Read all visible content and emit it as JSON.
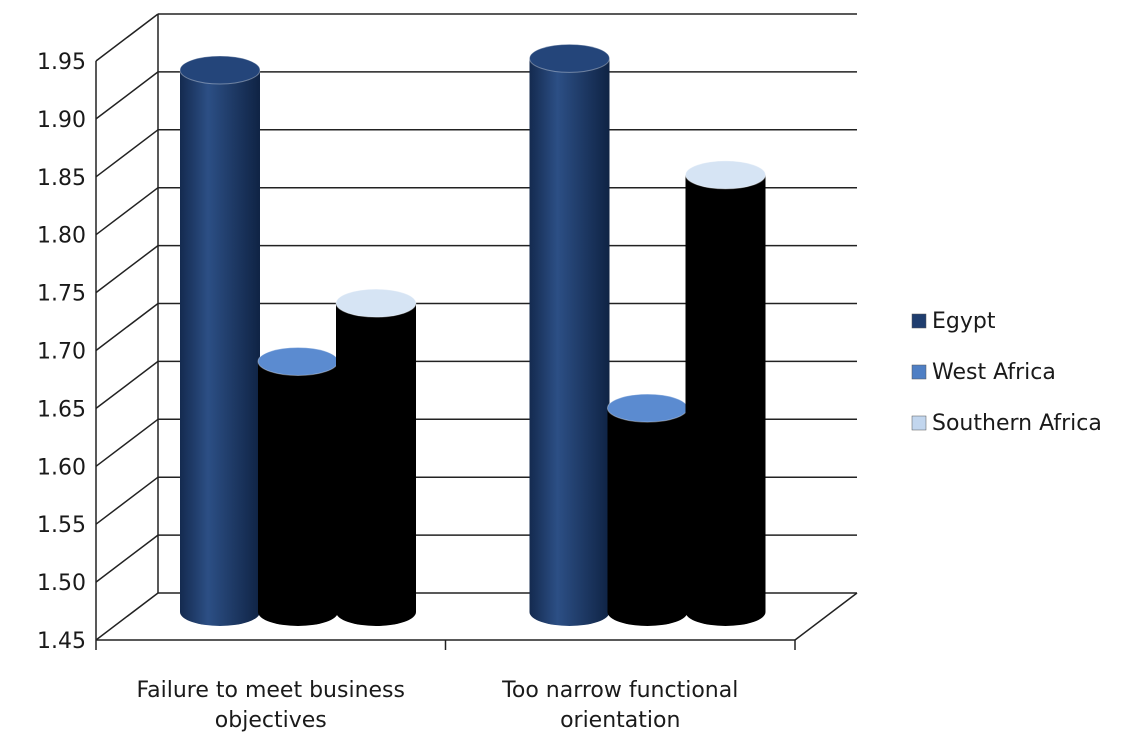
{
  "chart_data": {
    "type": "bar",
    "categories": [
      [
        "Failure to meet business",
        "objectives"
      ],
      [
        "Too narrow functional",
        "orientation"
      ]
    ],
    "series": [
      {
        "name": "Egypt",
        "values": [
          1.92,
          1.93
        ]
      },
      {
        "name": "West Africa",
        "values": [
          1.67,
          1.63
        ]
      },
      {
        "name": "Southern Africa",
        "values": [
          1.72,
          1.83
        ]
      }
    ],
    "ylim": [
      1.45,
      1.95
    ],
    "yticks": [
      "1.45",
      "1.50",
      "1.55",
      "1.60",
      "1.65",
      "1.70",
      "1.75",
      "1.80",
      "1.85",
      "1.90",
      "1.95"
    ],
    "grid": true,
    "legend_position": "right",
    "colors": {
      "Egypt": "#1f3d6e",
      "West Africa": "#4f7fc4",
      "Southern Africa": "#c2d6ee"
    }
  }
}
